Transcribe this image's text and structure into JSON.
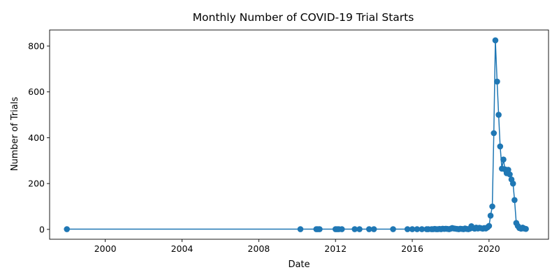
{
  "chart_data": {
    "type": "line",
    "title": "Monthly Number of COVID-19 Trial Starts",
    "xlabel": "Date",
    "ylabel": "Number of Trials",
    "xlim": [
      1997.1,
      2023.1
    ],
    "ylim": [
      -43,
      870
    ],
    "x_ticks": [
      2000,
      2004,
      2008,
      2012,
      2016,
      2020
    ],
    "x_tick_labels": [
      "2000",
      "2004",
      "2008",
      "2012",
      "2016",
      "2020"
    ],
    "y_ticks": [
      0,
      200,
      400,
      600,
      800
    ],
    "y_tick_labels": [
      "0",
      "200",
      "400",
      "600",
      "800"
    ],
    "grid": false,
    "color": "#1f77b4",
    "series": [
      {
        "x": [
          1998.0,
          2010.17,
          2011.0,
          2011.08,
          2011.17,
          2012.0,
          2012.08,
          2012.17,
          2012.33,
          2013.0,
          2013.25,
          2013.75,
          2014.0,
          2015.0,
          2015.75,
          2016.0,
          2016.25,
          2016.5,
          2016.75,
          2016.83,
          2017.0,
          2017.08,
          2017.17,
          2017.25,
          2017.33,
          2017.42,
          2017.5,
          2017.58,
          2017.67,
          2017.75,
          2017.83,
          2017.92,
          2018.0,
          2018.08,
          2018.17,
          2018.25,
          2018.33,
          2018.42,
          2018.5,
          2018.58,
          2018.67,
          2018.75,
          2018.83,
          2018.92,
          2019.0,
          2019.08,
          2019.17,
          2019.25,
          2019.33,
          2019.42,
          2019.5,
          2019.58,
          2019.67,
          2019.75,
          2019.83,
          2019.92,
          2020.0,
          2020.08,
          2020.17,
          2020.25,
          2020.33,
          2020.42,
          2020.5,
          2020.58,
          2020.67,
          2020.75,
          2020.83,
          2020.92,
          2021.0,
          2021.08,
          2021.17,
          2021.25,
          2021.33,
          2021.42,
          2021.5,
          2021.58,
          2021.67,
          2021.75,
          2021.83,
          2021.92
        ],
        "y": [
          1,
          1,
          1,
          1,
          1,
          1,
          1,
          1,
          1,
          1,
          1,
          1,
          1,
          1,
          1,
          1,
          1,
          1,
          1,
          1,
          1,
          1,
          2,
          1,
          1,
          2,
          1,
          3,
          2,
          3,
          2,
          1,
          3,
          6,
          4,
          3,
          2,
          1,
          3,
          2,
          1,
          4,
          2,
          1,
          3,
          14,
          6,
          3,
          8,
          4,
          7,
          5,
          3,
          6,
          4,
          9,
          15,
          60,
          100,
          420,
          825,
          645,
          500,
          362,
          265,
          305,
          262,
          245,
          260,
          240,
          218,
          200,
          128,
          28,
          15,
          6,
          3,
          8,
          4,
          2
        ]
      }
    ]
  }
}
